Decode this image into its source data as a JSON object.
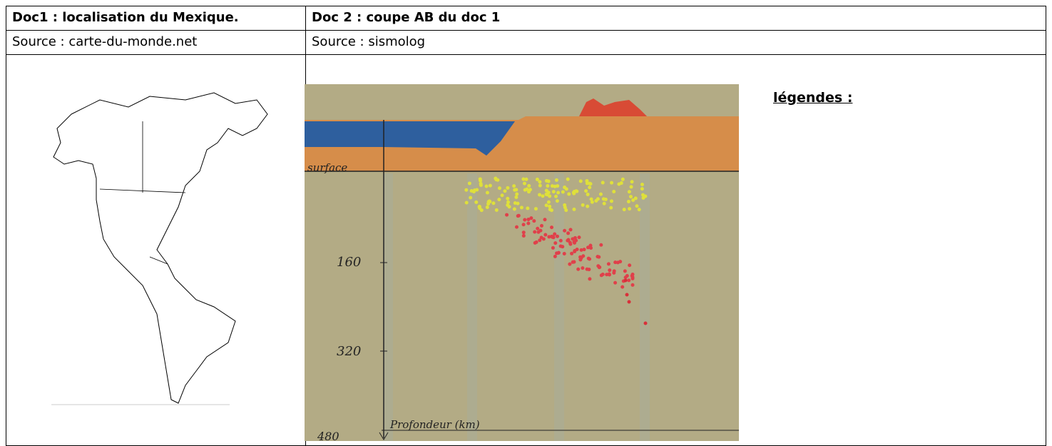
{
  "table": {
    "headers": [
      "Doc1 : localisation du Mexique.",
      "Doc 2 : coupe AB du doc 1"
    ],
    "sources": [
      "Source : carte-du-monde.net",
      "Source : sismolog"
    ]
  },
  "section": {
    "surface_label": "surface",
    "depth_ticks": [
      160,
      320,
      480
    ],
    "axis_label": "Profondeur (km)"
  },
  "legend_title": "légendes :"
}
